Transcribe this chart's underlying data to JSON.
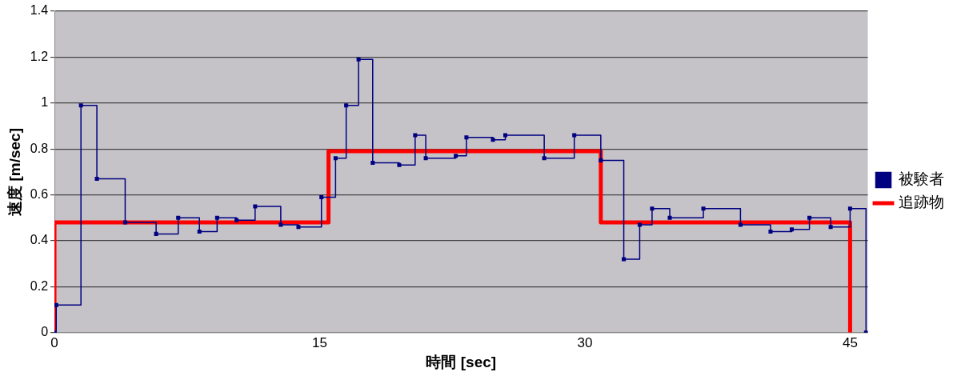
{
  "chart_data": {
    "type": "step",
    "xlabel": "時間 [sec]",
    "ylabel": "速度 [m/sec]",
    "xlim": [
      0,
      46
    ],
    "xticks": [
      0,
      15,
      30,
      45
    ],
    "ylim": [
      0,
      1.4
    ],
    "yticks": [
      0,
      0.2,
      0.4,
      0.6,
      0.8,
      1,
      1.2,
      1.4
    ],
    "grid": "y",
    "legend": "right",
    "series": [
      {
        "name": "被験者",
        "color": "#000080",
        "marker": "square",
        "x": [
          0,
          0.1,
          1.5,
          2.4,
          4.0,
          5.75,
          7.0,
          8.2,
          9.2,
          10.3,
          11.35,
          12.8,
          13.8,
          15.1,
          15.9,
          16.5,
          17.2,
          18.0,
          19.5,
          20.4,
          21.0,
          22.7,
          23.3,
          24.8,
          25.5,
          27.7,
          29.4,
          30.9,
          32.2,
          33.1,
          33.8,
          34.8,
          36.7,
          38.8,
          40.5,
          41.7,
          42.7,
          43.9,
          45.0,
          45.9
        ],
        "values": [
          0,
          0.12,
          0.99,
          0.67,
          0.48,
          0.43,
          0.5,
          0.44,
          0.5,
          0.49,
          0.55,
          0.47,
          0.46,
          0.59,
          0.76,
          0.99,
          1.19,
          0.74,
          0.73,
          0.86,
          0.76,
          0.77,
          0.85,
          0.84,
          0.86,
          0.76,
          0.86,
          0.75,
          0.32,
          0.47,
          0.54,
          0.5,
          0.54,
          0.47,
          0.44,
          0.45,
          0.5,
          0.46,
          0.54,
          0
        ]
      },
      {
        "name": "追跡物",
        "color": "#ff0000",
        "marker": "none",
        "x": [
          0,
          0,
          15.5,
          30.9,
          45
        ],
        "values": [
          0,
          0.48,
          0.79,
          0.48,
          0
        ]
      }
    ]
  }
}
